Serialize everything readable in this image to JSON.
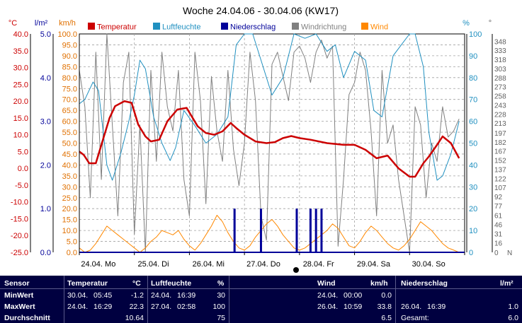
{
  "chart_data": {
    "type": "line",
    "title": "Woche 24.04.06 - 30.04.06 (KW17)",
    "legend": [
      "Temperatur",
      "Luftfeuchte",
      "Niederschlag",
      "Windrichtung",
      "Wind"
    ],
    "legend_placement": "top",
    "colors": {
      "Temperatur": "#cc0000",
      "Luftfeuchte": "#2090c0",
      "Niederschlag": "#000099",
      "Windrichtung": "#808080",
      "Wind": "#ff8800"
    },
    "x_range_days": [
      0,
      7
    ],
    "x_ticks": [
      "24.04. Mo",
      "25.04. Di",
      "26.04. Mi",
      "27.04. Do",
      "28.04. Fr",
      "29.04. Sa",
      "30.04. So"
    ],
    "grid": true,
    "axes": {
      "temp": {
        "unit": "°C",
        "range": [
          -25,
          40
        ],
        "ticks": [
          "40.0",
          "35.0",
          "30.0",
          "25.0",
          "20.0",
          "15.0",
          "10.0",
          "5.0",
          "0.0",
          "-5.0",
          "-10.0",
          "-15.0",
          "-20.0",
          "-25.0"
        ]
      },
      "rain": {
        "unit": "l/m²",
        "range": [
          0,
          5
        ],
        "ticks": [
          "5.0",
          "4.0",
          "3.0",
          "2.0",
          "1.0",
          "0.0"
        ]
      },
      "wind": {
        "unit": "km/h",
        "range": [
          0,
          100
        ],
        "ticks": [
          "100.0",
          "95.0",
          "90.0",
          "85.0",
          "80.0",
          "75.0",
          "70.0",
          "65.0",
          "60.0",
          "55.0",
          "50.0",
          "45.0",
          "40.0",
          "35.0",
          "30.0",
          "25.0",
          "20.0",
          "15.0",
          "10.0",
          "5.0",
          "0.0"
        ]
      },
      "humidity": {
        "unit": "%",
        "range": [
          0,
          100
        ],
        "ticks": [
          "100",
          "90",
          "80",
          "70",
          "60",
          "50",
          "40",
          "30",
          "20",
          "10",
          "0"
        ]
      },
      "direction": {
        "range": [
          0,
          360
        ],
        "ticks": [
          "348",
          "333",
          "318",
          "303",
          "288",
          "273",
          "258",
          "243",
          "228",
          "213",
          "197",
          "182",
          "167",
          "152",
          "137",
          "122",
          "107",
          "92",
          "77",
          "61",
          "46",
          "31",
          "16",
          "0"
        ],
        "zero_label": "N"
      }
    },
    "series": [
      {
        "name": "Temperatur",
        "axis": "temp",
        "x": [
          0,
          0.08,
          0.18,
          0.3,
          0.42,
          0.55,
          0.65,
          0.82,
          0.95,
          1.07,
          1.2,
          1.3,
          1.45,
          1.6,
          1.78,
          1.95,
          2.15,
          2.3,
          2.45,
          2.6,
          2.75,
          2.85,
          3.0,
          3.2,
          3.4,
          3.55,
          3.7,
          3.85,
          4.0,
          4.2,
          4.5,
          4.8,
          5.0,
          5.2,
          5.4,
          5.6,
          5.8,
          6.0,
          6.1,
          6.25,
          6.35,
          6.5,
          6.6,
          6.75,
          6.9
        ],
        "y": [
          5.0,
          4.0,
          1.5,
          1.5,
          8.0,
          15.0,
          18.5,
          20.0,
          19.5,
          13.0,
          9.5,
          8.0,
          8.5,
          14.0,
          17.5,
          18.0,
          12.5,
          10.5,
          10.0,
          11.0,
          13.5,
          12.0,
          10.0,
          8.0,
          7.5,
          7.8,
          9.0,
          9.6,
          9.0,
          8.5,
          7.5,
          7.0,
          7.0,
          5.5,
          3.0,
          3.8,
          0.0,
          -2.5,
          -2.5,
          1.5,
          3.5,
          7.0,
          9.5,
          7.5,
          3.0
        ]
      },
      {
        "name": "Luftfeuchte",
        "axis": "humidity",
        "x": [
          0,
          0.1,
          0.25,
          0.35,
          0.5,
          0.6,
          0.75,
          0.9,
          1.0,
          1.1,
          1.2,
          1.35,
          1.5,
          1.65,
          1.75,
          1.9,
          2.1,
          2.3,
          2.5,
          2.7,
          2.85,
          3.0,
          3.15,
          3.3,
          3.5,
          3.7,
          3.9,
          4.1,
          4.3,
          4.5,
          4.65,
          4.8,
          5.0,
          5.2,
          5.35,
          5.5,
          5.7,
          5.85,
          6.0,
          6.1,
          6.25,
          6.35,
          6.5,
          6.6,
          6.75,
          6.9
        ],
        "y": [
          68,
          70,
          78,
          74,
          40,
          33,
          45,
          60,
          72,
          88,
          84,
          62,
          50,
          42,
          48,
          65,
          58,
          50,
          54,
          62,
          95,
          100,
          100,
          88,
          72,
          80,
          100,
          98,
          100,
          92,
          95,
          80,
          92,
          88,
          65,
          62,
          90,
          95,
          100,
          100,
          85,
          55,
          33,
          35,
          45,
          60
        ]
      },
      {
        "name": "Windrichtung",
        "axis": "direction",
        "x": [
          0,
          0.1,
          0.2,
          0.3,
          0.4,
          0.5,
          0.6,
          0.7,
          0.8,
          0.9,
          1.0,
          1.1,
          1.2,
          1.3,
          1.4,
          1.5,
          1.6,
          1.7,
          1.8,
          1.9,
          2.0,
          2.1,
          2.2,
          2.3,
          2.4,
          2.5,
          2.6,
          2.7,
          2.8,
          2.9,
          3.0,
          3.1,
          3.2,
          3.3,
          3.4,
          3.5,
          3.6,
          3.7,
          3.8,
          3.9,
          4.0,
          4.1,
          4.2,
          4.3,
          4.4,
          4.5,
          4.6,
          4.7,
          4.8,
          4.9,
          5.0,
          5.1,
          5.2,
          5.3,
          5.4,
          5.5,
          5.6,
          5.7,
          5.8,
          5.9,
          6.0,
          6.1,
          6.2,
          6.3,
          6.4,
          6.5,
          6.6,
          6.7,
          6.8,
          6.9
        ],
        "y": [
          300,
          240,
          90,
          330,
          120,
          360,
          210,
          60,
          280,
          330,
          30,
          210,
          0,
          300,
          150,
          330,
          240,
          200,
          300,
          120,
          60,
          330,
          250,
          80,
          290,
          200,
          150,
          300,
          170,
          110,
          180,
          330,
          250,
          60,
          20,
          310,
          330,
          290,
          250,
          330,
          340,
          320,
          280,
          330,
          350,
          320,
          340,
          10,
          120,
          260,
          280,
          330,
          300,
          200,
          60,
          300,
          180,
          210,
          120,
          60,
          0,
          240,
          210,
          90,
          180,
          150,
          240,
          190,
          200,
          220
        ]
      },
      {
        "name": "Wind",
        "axis": "wind",
        "x": [
          0,
          0.1,
          0.2,
          0.3,
          0.4,
          0.5,
          0.6,
          0.7,
          0.8,
          0.9,
          1.0,
          1.1,
          1.2,
          1.3,
          1.4,
          1.5,
          1.6,
          1.7,
          1.8,
          1.9,
          2.0,
          2.1,
          2.2,
          2.3,
          2.4,
          2.5,
          2.6,
          2.7,
          2.8,
          2.9,
          3.0,
          3.1,
          3.2,
          3.3,
          3.4,
          3.5,
          3.6,
          3.7,
          3.8,
          3.9,
          4.0,
          4.1,
          4.2,
          4.3,
          4.4,
          4.5,
          4.6,
          4.7,
          4.8,
          4.9,
          5.0,
          5.1,
          5.2,
          5.3,
          5.4,
          5.5,
          5.6,
          5.7,
          5.8,
          5.9,
          6.0,
          6.1,
          6.2,
          6.3,
          6.4,
          6.5,
          6.6,
          6.7,
          6.8,
          6.9
        ],
        "y": [
          2,
          0,
          1,
          4,
          8,
          12,
          10,
          8,
          6,
          4,
          2,
          0,
          2,
          5,
          7,
          10,
          9,
          8,
          10,
          6,
          3,
          1,
          4,
          8,
          12,
          17,
          14,
          9,
          5,
          2,
          1,
          3,
          7,
          10,
          13,
          15,
          12,
          8,
          5,
          2,
          1,
          2,
          4,
          6,
          8,
          10,
          13,
          11,
          7,
          3,
          2,
          5,
          9,
          12,
          10,
          7,
          4,
          2,
          1,
          3,
          6,
          10,
          14,
          12,
          10,
          7,
          4,
          2,
          1,
          0
        ]
      },
      {
        "name": "Niederschlag",
        "type": "bar",
        "axis": "rain",
        "x": [
          2.82,
          3.3,
          3.95,
          4.2,
          4.3,
          4.4
        ],
        "y": [
          1.0,
          1.0,
          1.0,
          1.0,
          1.0,
          1.0
        ]
      }
    ]
  },
  "stats": {
    "headers": {
      "sensor": "Sensor",
      "temperatur": "Temperatur",
      "temp_unit": "°C",
      "luftfeuchte": "Luftfeuchte",
      "lf_unit": "%",
      "wind": "Wind",
      "wind_unit": "km/h",
      "niederschlag": "Niederschlag",
      "rain_unit": "l/m²"
    },
    "rows": {
      "min": {
        "label": "MinWert",
        "t_date": "30.04.",
        "t_time": "05:45",
        "t_val": "-1.2",
        "h_date": "24.04.",
        "h_time": "16:39",
        "h_val": "30",
        "w_date": "24.04.",
        "w_time": "00:00",
        "w_val": "0.0"
      },
      "max": {
        "label": "MaxWert",
        "t_date": "24.04.",
        "t_time": "16:29",
        "t_val": "22.3",
        "h_date": "27.04.",
        "h_time": "02:58",
        "h_val": "100",
        "w_date": "26.04.",
        "w_time": "10:59",
        "w_val": "33.8",
        "r_date": "26.04.",
        "r_time": "16:39",
        "r_val": "1.0"
      },
      "avg": {
        "label": "Durchschnitt",
        "t_val": "10.64",
        "h_val": "75",
        "w_val": "6.5",
        "r_label": "Gesamt:",
        "r_val": "6.0"
      }
    }
  }
}
